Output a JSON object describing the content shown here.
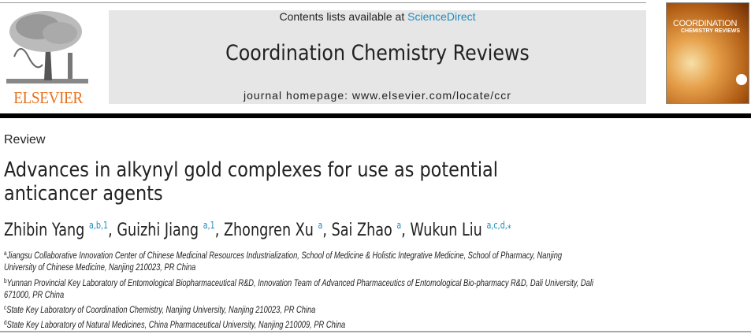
{
  "publisher": {
    "logo_text": "ELSEVIER"
  },
  "banner": {
    "contents_prefix": "Contents lists available at ",
    "contents_link": "ScienceDirect",
    "journal_title": "Coordination Chemistry Reviews",
    "homepage": "journal homepage: www.elsevier.com/locate/ccr"
  },
  "cover": {
    "line1": "COORDINATION",
    "line2": "CHEMISTRY REVIEWS"
  },
  "article": {
    "type": "Review",
    "title_lines": [
      "Advances in alkynyl gold complexes for use as potential",
      "anticancer agents"
    ],
    "authors": [
      {
        "name": "Zhibin Yang",
        "marks": "a,b,1"
      },
      {
        "name": "Guizhi Jiang",
        "marks": "a,1"
      },
      {
        "name": "Zhongren Xu",
        "marks": "a"
      },
      {
        "name": "Sai Zhao",
        "marks": "a"
      },
      {
        "name": "Wukun Liu",
        "marks": "a,c,d,⁎"
      }
    ],
    "affiliations": [
      {
        "mark": "a",
        "lines": [
          "Jiangsu Collaborative Innovation Center of Chinese Medicinal Resources Industrialization, School of Medicine & Holistic Integrative Medicine, School of Pharmacy, Nanjing",
          "University of Chinese Medicine, Nanjing 210023, PR China"
        ]
      },
      {
        "mark": "b",
        "lines": [
          "Yunnan Provincial Key Laboratory of Entomological Biopharmaceutical R&D, Innovation Team of Advanced Pharmaceutics of Entomological Bio-pharmacy R&D, Dali University, Dali",
          "671000, PR China"
        ]
      },
      {
        "mark": "c",
        "lines": [
          "State Key Laboratory of Coordination Chemistry, Nanjing University, Nanjing 210023, PR China"
        ]
      },
      {
        "mark": "d",
        "lines": [
          "State Key Laboratory of Natural Medicines, China Pharmaceutical University, Nanjing 210009, PR China"
        ]
      }
    ]
  },
  "colors": {
    "link": "#1c8dbf",
    "elsevier_orange": "#e9711c",
    "banner_bg": "#e6e6e6"
  }
}
